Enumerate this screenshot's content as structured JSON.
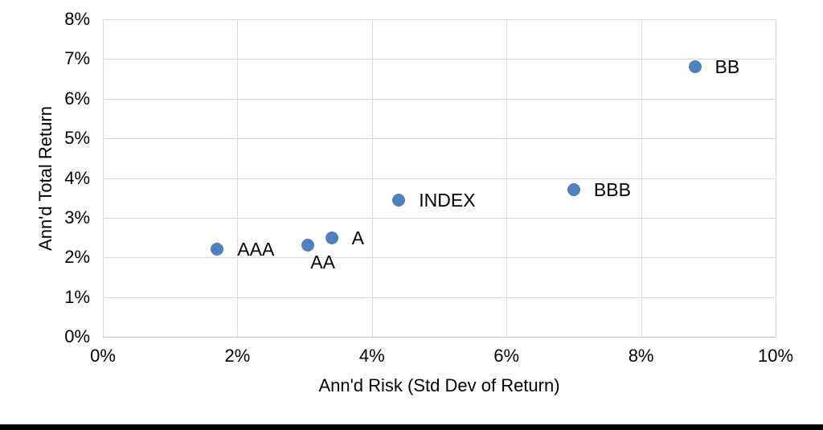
{
  "page": {
    "background": "#ffffff",
    "bottom_bar_color": "#000000"
  },
  "chart_data": {
    "type": "scatter",
    "title": "",
    "xlabel": "Ann'd Risk (Std Dev of Return)",
    "ylabel": "Ann'd Total Return",
    "xlim": [
      0,
      10
    ],
    "ylim": [
      0,
      8
    ],
    "units": "percent",
    "grid": true,
    "legend": "none",
    "marker_color": "#4F81BD",
    "gridline_color": "#D9D9D9",
    "axis_line_color": "#BFBFBF",
    "text_color": "#000000",
    "x_ticks": [
      {
        "value": 0,
        "label": "0%"
      },
      {
        "value": 2,
        "label": "2%"
      },
      {
        "value": 4,
        "label": "4%"
      },
      {
        "value": 6,
        "label": "6%"
      },
      {
        "value": 8,
        "label": "8%"
      },
      {
        "value": 10,
        "label": "10%"
      }
    ],
    "y_ticks": [
      {
        "value": 0,
        "label": "0%"
      },
      {
        "value": 1,
        "label": "1%"
      },
      {
        "value": 2,
        "label": "2%"
      },
      {
        "value": 3,
        "label": "3%"
      },
      {
        "value": 4,
        "label": "4%"
      },
      {
        "value": 5,
        "label": "5%"
      },
      {
        "value": 6,
        "label": "6%"
      },
      {
        "value": 7,
        "label": "7%"
      },
      {
        "value": 8,
        "label": "8%"
      }
    ],
    "points": [
      {
        "label": "AAA",
        "x": 1.7,
        "y": 2.2,
        "label_side": "right"
      },
      {
        "label": "AA",
        "x": 3.05,
        "y": 2.3,
        "label_side": "below"
      },
      {
        "label": "A",
        "x": 3.4,
        "y": 2.5,
        "label_side": "right"
      },
      {
        "label": "INDEX",
        "x": 4.4,
        "y": 3.45,
        "label_side": "right"
      },
      {
        "label": "BBB",
        "x": 7.0,
        "y": 3.7,
        "label_side": "right"
      },
      {
        "label": "BB",
        "x": 8.8,
        "y": 6.8,
        "label_side": "right"
      }
    ]
  }
}
